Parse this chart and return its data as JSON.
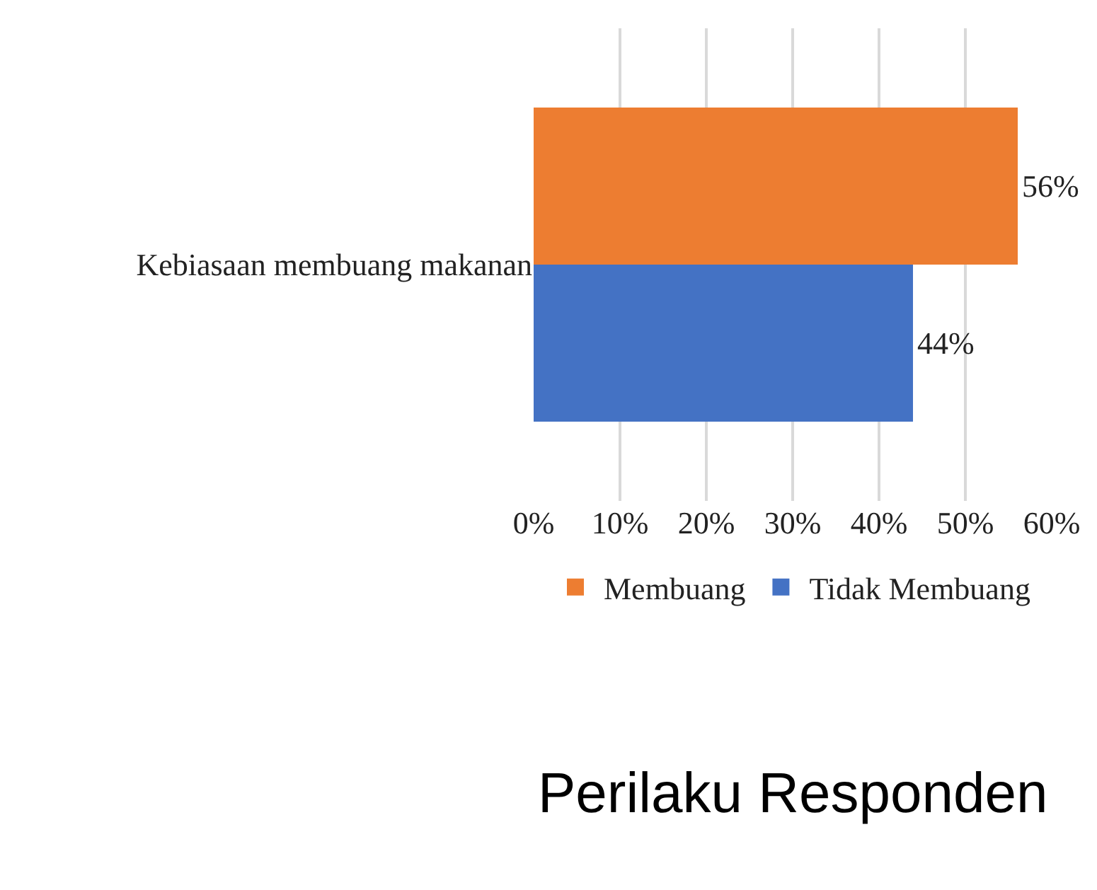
{
  "chart_data": {
    "type": "bar",
    "orientation": "horizontal",
    "title": "Perilaku Responden",
    "categories": [
      "Kebiasaan membuang makanan"
    ],
    "series": [
      {
        "name": "Membuang",
        "color": "#ed7d31",
        "values": [
          56
        ],
        "value_labels": [
          "56%"
        ]
      },
      {
        "name": "Tidak Membuang",
        "color": "#4472c4",
        "values": [
          44
        ],
        "value_labels": [
          "44%"
        ]
      }
    ],
    "xlim": [
      0,
      60
    ],
    "xticks": [
      {
        "value": 0,
        "label": "0%"
      },
      {
        "value": 10,
        "label": "10%"
      },
      {
        "value": 20,
        "label": "20%"
      },
      {
        "value": 30,
        "label": "30%"
      },
      {
        "value": 40,
        "label": "40%"
      },
      {
        "value": 50,
        "label": "50%"
      },
      {
        "value": 60,
        "label": "60%"
      }
    ],
    "grid": "x",
    "legend": "bottom"
  }
}
